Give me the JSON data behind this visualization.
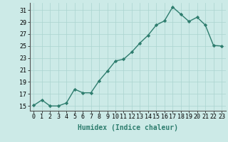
{
  "x": [
    0,
    1,
    2,
    3,
    4,
    5,
    6,
    7,
    8,
    9,
    10,
    11,
    12,
    13,
    14,
    15,
    16,
    17,
    18,
    19,
    20,
    21,
    22,
    23
  ],
  "y": [
    15.1,
    16.0,
    15.0,
    15.0,
    15.5,
    17.8,
    17.2,
    17.2,
    19.2,
    20.8,
    22.5,
    22.8,
    24.0,
    25.5,
    26.8,
    28.5,
    29.2,
    31.5,
    30.3,
    29.1,
    29.8,
    28.5,
    25.1,
    25.0
  ],
  "line_color": "#2e7d6e",
  "marker": "D",
  "markersize": 2.2,
  "linewidth": 1.0,
  "bg_color": "#cceae7",
  "grid_color": "#aad4cf",
  "xlabel": "Humidex (Indice chaleur)",
  "xlabel_fontsize": 7.0,
  "yticks": [
    15,
    17,
    19,
    21,
    23,
    25,
    27,
    29,
    31
  ],
  "xticks": [
    0,
    1,
    2,
    3,
    4,
    5,
    6,
    7,
    8,
    9,
    10,
    11,
    12,
    13,
    14,
    15,
    16,
    17,
    18,
    19,
    20,
    21,
    22,
    23
  ],
  "ylim": [
    14.2,
    32.2
  ],
  "xlim": [
    -0.5,
    23.5
  ],
  "tick_fontsize": 6.0
}
